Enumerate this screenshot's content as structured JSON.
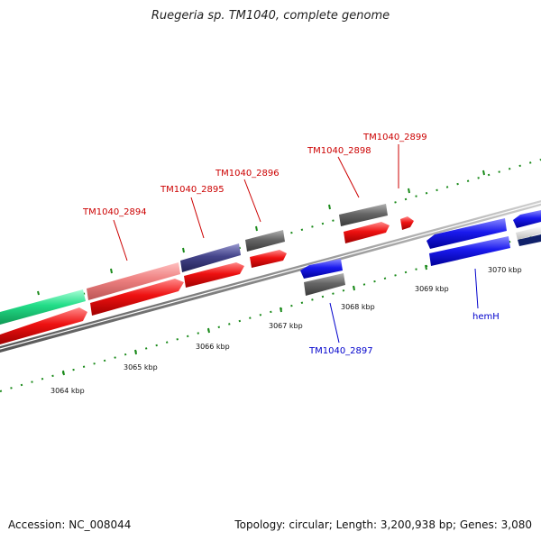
{
  "title": "Ruegeria sp. TM1040, complete genome",
  "footer": {
    "accession": "Accession: NC_008044",
    "stats": "Topology: circular; Length: 3,200,938 bp; Genes: 3,080"
  },
  "scale_labels": [
    "3064 kbp",
    "3065 kbp",
    "3066 kbp",
    "3067 kbp",
    "3068 kbp",
    "3069 kbp",
    "3070 kbp"
  ],
  "gene_labels": [
    {
      "text": "TM1040_2894",
      "color": "#cc0000"
    },
    {
      "text": "TM1040_2895",
      "color": "#cc0000"
    },
    {
      "text": "TM1040_2896",
      "color": "#cc0000"
    },
    {
      "text": "TM1040_2898",
      "color": "#cc0000"
    },
    {
      "text": "TM1040_2899",
      "color": "#cc0000"
    },
    {
      "text": "TM1040_2897",
      "color": "#0000cc"
    },
    {
      "text": "hemH",
      "color": "#0000cc"
    }
  ],
  "colors": {
    "forward_cds": "#ee1111",
    "reverse_cds": "#1a1aee",
    "backbone": "#8c8c8c",
    "tick": "#1a8a1a",
    "gray_feature": "#666666",
    "green_feature": "#22dd88",
    "pink_feature": "#ee8080",
    "purple_feature": "#44448a"
  }
}
